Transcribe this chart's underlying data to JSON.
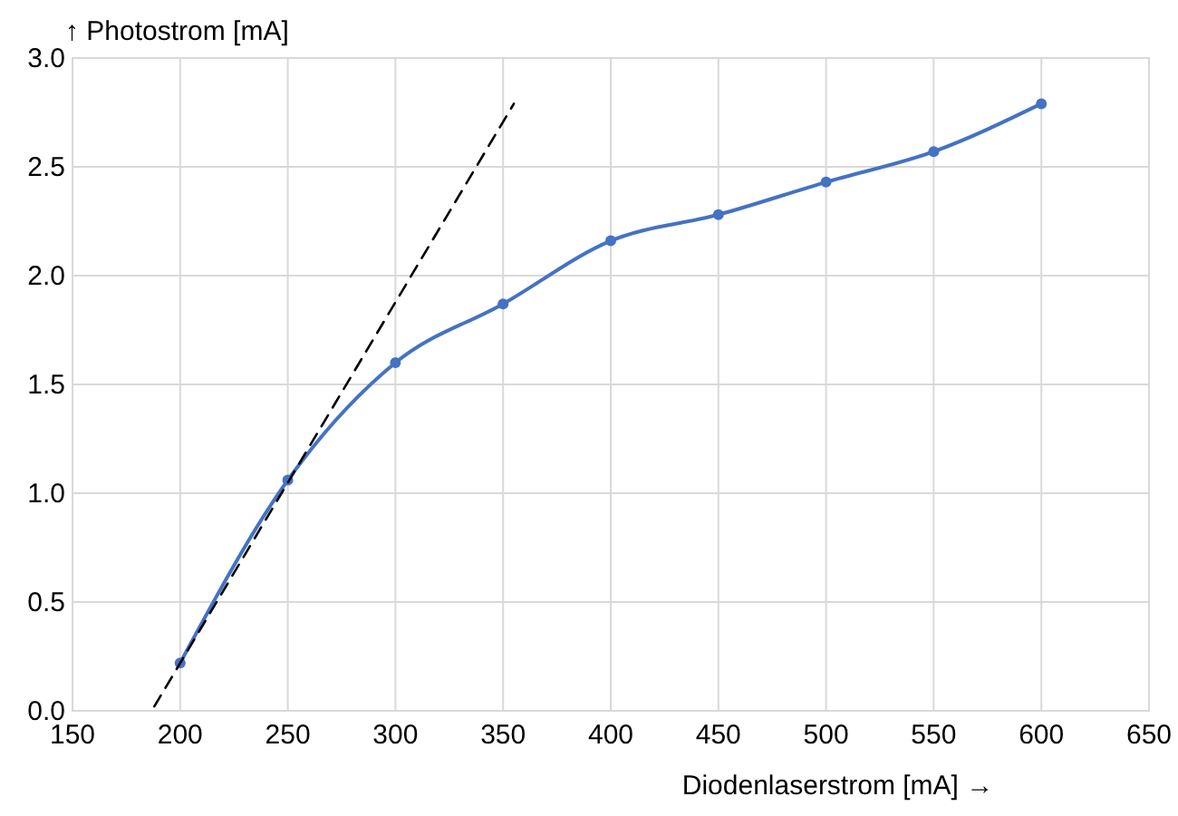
{
  "chart_data": {
    "type": "line",
    "xlabel": "Diodenlaserstrom [mA] →",
    "ylabel": "↑ Photostrom [mA]",
    "x": [
      200,
      250,
      300,
      350,
      400,
      450,
      500,
      550,
      600
    ],
    "series": [
      {
        "color": "#4472c4",
        "values": [
          0.22,
          1.06,
          1.6,
          1.87,
          2.16,
          2.28,
          2.43,
          2.57,
          2.79
        ],
        "marker": "circle",
        "line_style": "solid"
      },
      {
        "type": "line",
        "color": "#000000",
        "x": [
          188,
          355
        ],
        "values": [
          0.02,
          2.79
        ],
        "marker": "none",
        "line_style": "dashed"
      }
    ],
    "xlim": [
      150,
      650
    ],
    "xticks": [
      150,
      200,
      250,
      300,
      350,
      400,
      450,
      500,
      550,
      600,
      650
    ],
    "ylim": [
      0,
      3
    ],
    "yticks": [
      {
        "value": 0,
        "label": "0.0"
      },
      0.5,
      {
        "value": 1,
        "label": "1.0"
      },
      1.5,
      {
        "value": 2,
        "label": "2.0"
      },
      2.5,
      {
        "value": 3,
        "label": "3.0"
      }
    ],
    "grid": true
  }
}
